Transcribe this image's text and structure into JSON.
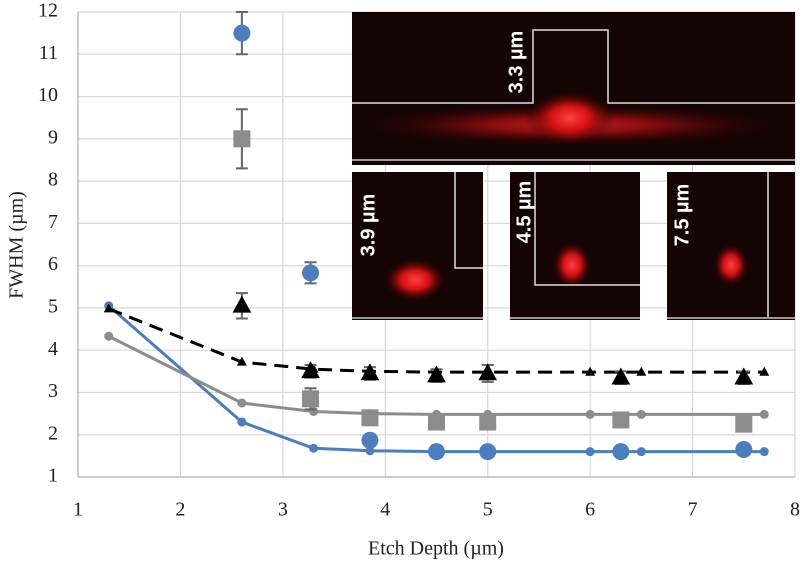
{
  "chart_data": {
    "type": "scatter",
    "x_label": "Etch Depth (µm)",
    "y_label": "FWHM (µm)",
    "xlim": [
      1,
      8
    ],
    "xticks": [
      1,
      2,
      3,
      4,
      5,
      6,
      7,
      8
    ],
    "ylim": [
      1,
      12
    ],
    "yticks": [
      1,
      2,
      3,
      4,
      5,
      6,
      7,
      8,
      9,
      10,
      11,
      12
    ],
    "grid": true,
    "annotations": [
      "3.3 µm",
      "3.9 µm",
      "4.5 µm",
      "7.5 µm"
    ],
    "series": [
      {
        "color": "#4a7ebf",
        "marker": "circle",
        "line": "solid",
        "x": [
          1.3,
          2.6,
          3.3,
          3.85,
          4.5,
          5,
          6,
          6.5,
          7.7
        ],
        "values": [
          5.05,
          2.3,
          1.68,
          1.62,
          1.6,
          1.6,
          1.6,
          1.6,
          1.6
        ]
      },
      {
        "color": "#8c8c8c",
        "marker": "circle",
        "line": "solid",
        "x": [
          1.3,
          2.6,
          3.3,
          3.85,
          4.5,
          5,
          6,
          6.5,
          7.7
        ],
        "values": [
          4.33,
          2.75,
          2.55,
          2.5,
          2.48,
          2.48,
          2.48,
          2.48,
          2.48
        ]
      },
      {
        "color": "#000000",
        "marker": "triangle",
        "line": "dashed",
        "x": [
          1.3,
          2.6,
          3.3,
          3.85,
          4.5,
          5,
          6,
          6.5,
          7.7
        ],
        "values": [
          4.98,
          3.72,
          3.55,
          3.5,
          3.48,
          3.48,
          3.48,
          3.48,
          3.48
        ]
      },
      {
        "color": "#4a7ebf",
        "marker": "circle",
        "x": [
          2.6,
          3.27,
          3.85,
          4.5,
          5,
          6.3,
          7.5
        ],
        "values": [
          11.5,
          5.83,
          1.87,
          1.6,
          1.6,
          1.6,
          1.65
        ],
        "errors": [
          0.5,
          0.25,
          0.1,
          0.05,
          0.05,
          0.05,
          0.05
        ]
      },
      {
        "color": "#8c8c8c",
        "marker": "square",
        "x": [
          2.6,
          3.27,
          3.85,
          4.5,
          5,
          6.3,
          7.5
        ],
        "values": [
          9.0,
          2.85,
          2.4,
          2.3,
          2.3,
          2.35,
          2.25
        ],
        "errors": [
          0.7,
          0.25,
          0.15,
          0.15,
          0.15,
          0.15,
          0.15
        ]
      },
      {
        "color": "#000000",
        "marker": "triangle",
        "x": [
          2.6,
          3.27,
          3.85,
          4.5,
          5,
          6.3,
          7.5
        ],
        "values": [
          5.05,
          3.5,
          3.45,
          3.4,
          3.45,
          3.35,
          3.35
        ],
        "errors": [
          0.3,
          0.15,
          0.15,
          0.15,
          0.2,
          0.15,
          0.15
        ]
      }
    ]
  }
}
